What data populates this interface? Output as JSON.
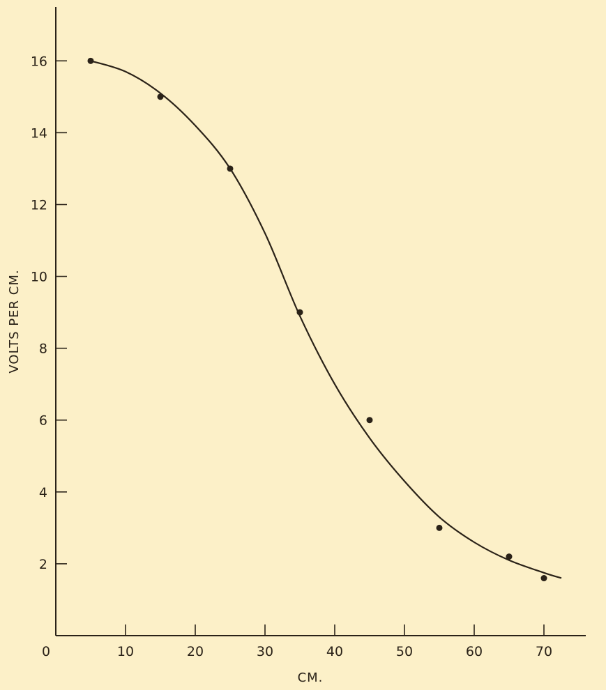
{
  "chart_data": {
    "type": "scatter",
    "title": "",
    "xlabel": "CM.",
    "ylabel": "VOLTS PER CM.",
    "origin_label": "0",
    "xlim": [
      0,
      76
    ],
    "ylim": [
      0,
      17.5
    ],
    "x_ticks": [
      10,
      20,
      30,
      40,
      50,
      60,
      70
    ],
    "y_ticks": [
      2,
      4,
      6,
      8,
      10,
      12,
      14,
      16
    ],
    "grid": false,
    "series": [
      {
        "marker": "dot",
        "x": [
          5,
          15,
          25,
          35,
          45,
          55,
          65,
          70
        ],
        "y": [
          16,
          15,
          13,
          9,
          6,
          3,
          2.2,
          1.6
        ]
      }
    ],
    "fit_curve": {
      "style": "smooth line",
      "x": [
        5,
        10,
        15,
        20,
        25,
        30,
        35,
        40,
        45,
        50,
        55,
        60,
        65,
        70,
        72.5
      ],
      "y": [
        16,
        15.7,
        15.1,
        14.2,
        13.0,
        11.2,
        8.9,
        7.0,
        5.5,
        4.3,
        3.3,
        2.6,
        2.1,
        1.75,
        1.6
      ]
    },
    "colors": {
      "background": "#fcf0c8",
      "ink": "#2a2218"
    }
  }
}
